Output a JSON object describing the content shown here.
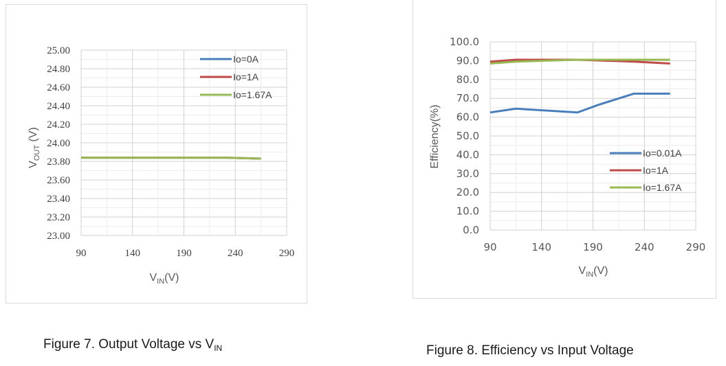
{
  "chart_data": [
    {
      "type": "line",
      "title": "",
      "xlabel": "VIN(V)",
      "ylabel": "VOUT (V)",
      "x_ticks": [
        "90",
        "140",
        "190",
        "240",
        "290"
      ],
      "y_ticks": [
        "23.00",
        "23.20",
        "23.40",
        "23.60",
        "23.80",
        "24.00",
        "24.20",
        "24.40",
        "24.60",
        "24.80",
        "25.00"
      ],
      "xlim": [
        90,
        290
      ],
      "ylim": [
        23.0,
        25.0
      ],
      "legend_position": "top-right",
      "series": [
        {
          "name": "Io=0A",
          "color": "#4a7ebb",
          "x": [
            90,
            115,
            175,
            230,
            265
          ],
          "values": [
            23.84,
            23.84,
            23.84,
            23.84,
            23.83
          ]
        },
        {
          "name": "Io=1A",
          "color": "#be4b48",
          "x": [
            90,
            115,
            175,
            230,
            265
          ],
          "values": [
            23.84,
            23.84,
            23.84,
            23.84,
            23.83
          ]
        },
        {
          "name": "Io=1.67A",
          "color": "#98b954",
          "x": [
            90,
            115,
            175,
            230,
            265
          ],
          "values": [
            23.84,
            23.84,
            23.84,
            23.84,
            23.83
          ]
        }
      ]
    },
    {
      "type": "line",
      "title": "",
      "xlabel": "VIN(V)",
      "ylabel": "Efficiency(%)",
      "x_ticks": [
        "90",
        "140",
        "190",
        "240",
        "290"
      ],
      "y_ticks": [
        "0.0",
        "10.0",
        "20.0",
        "30.0",
        "40.0",
        "50.0",
        "60.0",
        "70.0",
        "80.0",
        "90.0",
        "100.0"
      ],
      "xlim": [
        90,
        290
      ],
      "ylim": [
        0,
        100
      ],
      "legend_position": "lower-right",
      "series": [
        {
          "name": "Io=0.01A",
          "color": "#4a7ebb",
          "x": [
            90,
            115,
            175,
            195,
            230,
            265
          ],
          "values": [
            62.5,
            64.5,
            62.5,
            66.5,
            72.5,
            72.5
          ]
        },
        {
          "name": "Io=1A",
          "color": "#be4b48",
          "x": [
            90,
            115,
            175,
            230,
            265
          ],
          "values": [
            89.5,
            90.5,
            90.5,
            89.5,
            88.5
          ]
        },
        {
          "name": "Io=1.67A",
          "color": "#98b954",
          "x": [
            90,
            115,
            175,
            230,
            265
          ],
          "values": [
            88.5,
            89.5,
            90.5,
            90.5,
            90.5
          ]
        }
      ]
    }
  ],
  "captions": {
    "fig7_text": "Figure 7. Output Voltage vs V",
    "fig7_sub": "IN",
    "fig8_text": "Figure 8. Efficiency vs Input Voltage"
  },
  "axis_labels": {
    "fig7_x_main": "V",
    "fig7_x_sub": "IN",
    "fig7_x_unit": "(V)",
    "fig7_y_main": "V",
    "fig7_y_sub": "OUT",
    "fig7_y_unit": " (V)",
    "fig8_x_main": "V",
    "fig8_x_sub": "IN",
    "fig8_x_unit": "(V)",
    "fig8_y": "Efficiency(%)"
  }
}
